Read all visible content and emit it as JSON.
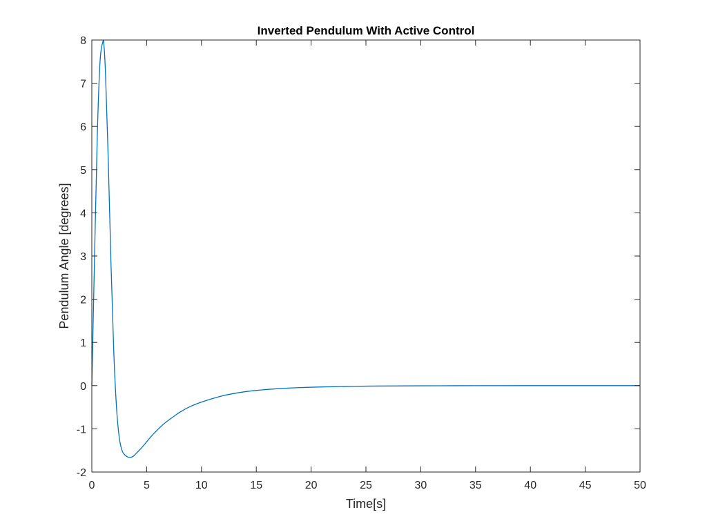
{
  "chart_data": {
    "type": "line",
    "title": "Inverted Pendulum With Active Control",
    "xlabel": "Time[s]",
    "ylabel": "Pendulum Angle [degrees]",
    "xlim": [
      0,
      50
    ],
    "ylim": [
      -2,
      8
    ],
    "xticks": [
      "0",
      "5",
      "10",
      "15",
      "20",
      "25",
      "30",
      "35",
      "40",
      "45",
      "50"
    ],
    "yticks": [
      "-2",
      "-1",
      "0",
      "1",
      "2",
      "3",
      "4",
      "5",
      "6",
      "7",
      "8"
    ],
    "grid": false,
    "line_color": "#0072BD",
    "series": [
      {
        "name": "",
        "x": [
          0,
          0.25,
          0.5,
          0.75,
          1.0,
          1.1,
          1.25,
          1.5,
          1.75,
          2.0,
          2.25,
          2.5,
          2.75,
          3.0,
          3.25,
          3.5,
          3.75,
          4.0,
          4.5,
          5.0,
          5.5,
          6.0,
          6.5,
          7.0,
          8.0,
          9.0,
          10.0,
          11.0,
          12.0,
          13.0,
          14.0,
          15.0,
          17.0,
          19.0,
          21.0,
          23.0,
          25.0,
          27.0,
          30.0,
          35.0,
          40.0,
          45.0,
          50.0
        ],
        "y": [
          0,
          3.0,
          5.8,
          7.5,
          7.95,
          7.9,
          7.2,
          5.2,
          2.8,
          0.8,
          -0.5,
          -1.2,
          -1.5,
          -1.6,
          -1.65,
          -1.66,
          -1.64,
          -1.58,
          -1.45,
          -1.3,
          -1.15,
          -1.02,
          -0.9,
          -0.8,
          -0.62,
          -0.48,
          -0.38,
          -0.3,
          -0.23,
          -0.18,
          -0.14,
          -0.11,
          -0.07,
          -0.045,
          -0.03,
          -0.02,
          -0.012,
          -0.008,
          -0.004,
          -0.001,
          0,
          0,
          0
        ]
      }
    ]
  }
}
